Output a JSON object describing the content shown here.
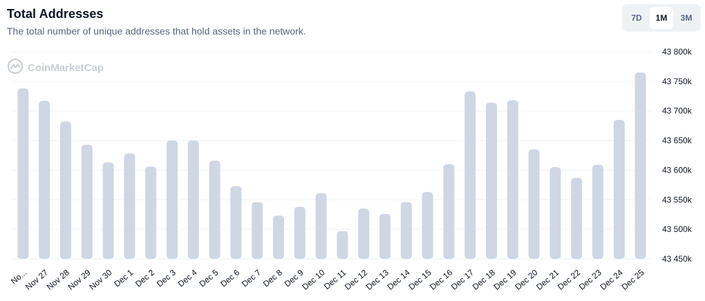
{
  "header": {
    "title": "Total Addresses",
    "subtitle": "The total number of unique addresses that hold assets in the network."
  },
  "range_options": [
    {
      "label": "7D",
      "active": false
    },
    {
      "label": "1M",
      "active": true
    },
    {
      "label": "3M",
      "active": false
    }
  ],
  "watermark": {
    "text": "CoinMarketCap",
    "icon": "coinmarketcap-logo-icon"
  },
  "colors": {
    "bar": "#cfd6e4",
    "grid": "#eff2f5",
    "active_tab_bg": "#ffffff",
    "toggle_bg": "#eff2f5"
  },
  "chart_data": {
    "type": "bar",
    "categories": [
      "No...",
      "Nov 27",
      "Nov 28",
      "Nov 29",
      "Nov 30",
      "Dec 1",
      "Dec 2",
      "Dec 3",
      "Dec 4",
      "Dec 5",
      "Dec 6",
      "Dec 7",
      "Dec 8",
      "Dec 9",
      "Dec 10",
      "Dec 11",
      "Dec 12",
      "Dec 13",
      "Dec 14",
      "Dec 15",
      "Dec 16",
      "Dec 17",
      "Dec 18",
      "Dec 19",
      "Dec 20",
      "Dec 21",
      "Dec 22",
      "Dec 23",
      "Dec 24",
      "Dec 25"
    ],
    "values": [
      43738000,
      43717000,
      43682000,
      43643000,
      43613000,
      43628000,
      43606000,
      43650000,
      43650000,
      43616000,
      43573000,
      43546000,
      43523000,
      43538000,
      43561000,
      43497000,
      43535000,
      43526000,
      43546000,
      43563000,
      43610000,
      43733000,
      43714000,
      43718000,
      43635000,
      43605000,
      43587000,
      43609000,
      43685000,
      43765000
    ],
    "yticks": [
      "43 450k",
      "43 500k",
      "43 550k",
      "43 600k",
      "43 650k",
      "43 700k",
      "43 750k",
      "43 800k"
    ],
    "ylim": [
      43450000,
      43800000
    ],
    "ytick_step": 50000,
    "y_axis_side": "right",
    "grid": true,
    "title": "",
    "xlabel": "",
    "ylabel": ""
  }
}
